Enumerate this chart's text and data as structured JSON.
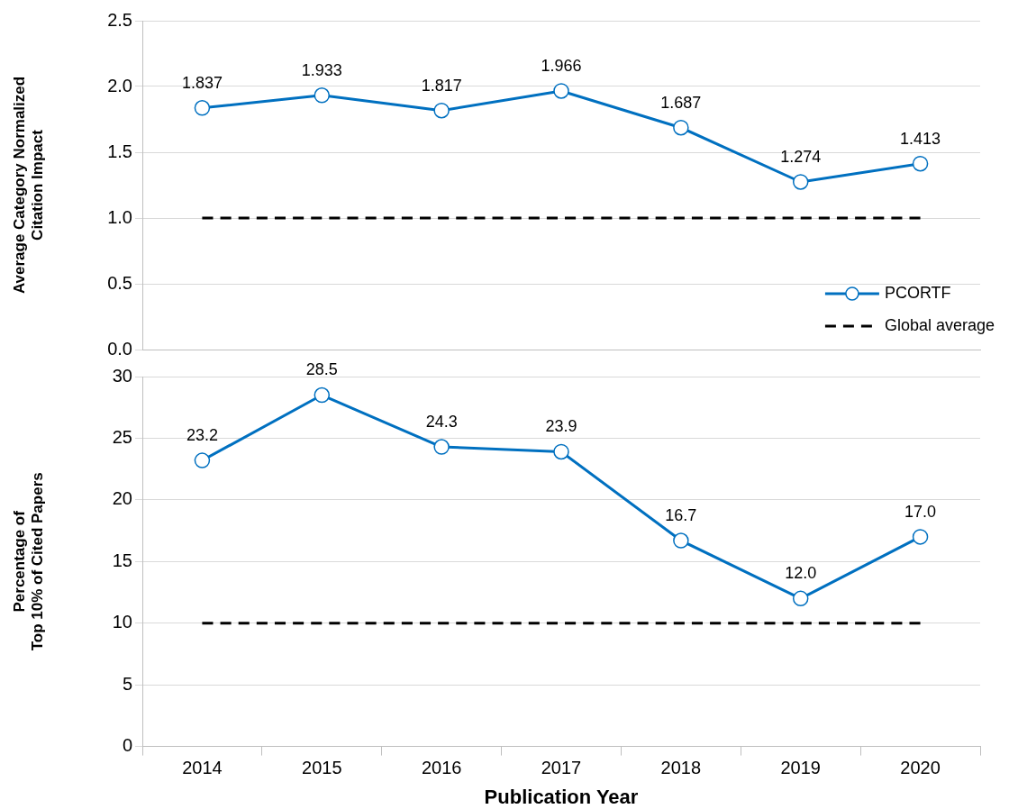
{
  "chart_data": [
    {
      "type": "line",
      "ylabel": "Average Category Normalized\nCitation Impact",
      "categories": [
        "2014",
        "2015",
        "2016",
        "2017",
        "2018",
        "2019",
        "2020"
      ],
      "ylim": [
        0,
        2.5
      ],
      "yticks": [
        {
          "value": 0,
          "label": "0.0"
        },
        {
          "value": 0.5,
          "label": "0.5"
        },
        {
          "value": 1,
          "label": "1.0"
        },
        {
          "value": 1.5,
          "label": "1.5"
        },
        {
          "value": 2,
          "label": "2.0"
        },
        {
          "value": 2.5,
          "label": "2.5"
        }
      ],
      "grid": "y",
      "legend": "bottom right",
      "tick_labels": "y",
      "series": [
        {
          "name": "PCORTF",
          "color": "#0070c0",
          "marker": "circle",
          "line_style": "solid",
          "values": [
            1.837,
            1.933,
            1.817,
            1.966,
            1.687,
            1.274,
            1.413
          ],
          "value_labels": [
            "1.837",
            "1.933",
            "1.817",
            "1.966",
            "1.687",
            "1.274",
            "1.413"
          ]
        },
        {
          "name": "Global average",
          "color": "#000000",
          "marker": "none",
          "line_style": "dashed",
          "values": [
            1,
            1,
            1,
            1,
            1,
            1,
            1
          ]
        }
      ]
    },
    {
      "type": "line",
      "ylabel": "Percentage of\nTop 10% of Cited Papers",
      "xlabel": "Publication Year",
      "categories": [
        "2014",
        "2015",
        "2016",
        "2017",
        "2018",
        "2019",
        "2020"
      ],
      "ylim": [
        0,
        30
      ],
      "yticks": [
        0,
        5,
        10,
        15,
        20,
        25,
        30
      ],
      "grid": "y",
      "series": [
        {
          "color": "#0070c0",
          "marker": "circle",
          "line_style": "solid",
          "values": [
            23.2,
            28.5,
            24.3,
            23.9,
            16.7,
            12.0,
            17.0
          ],
          "value_labels": [
            "23.2",
            "28.5",
            "24.3",
            "23.9",
            "16.7",
            "12.0",
            "17.0"
          ]
        },
        {
          "color": "#000000",
          "marker": "none",
          "line_style": "dashed",
          "values": [
            10,
            10,
            10,
            10,
            10,
            10,
            10
          ]
        }
      ]
    }
  ]
}
